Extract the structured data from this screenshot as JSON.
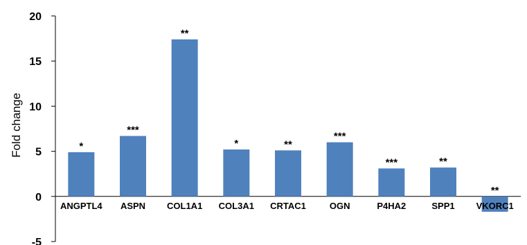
{
  "chart_data": {
    "type": "bar",
    "title": "",
    "xlabel": "",
    "ylabel": "Fold change",
    "ylim": [
      -5,
      20
    ],
    "yticks": [
      "20",
      "15",
      "10",
      "5",
      "0",
      "-5"
    ],
    "grid": false,
    "categories": [
      "ANGPTL4",
      "ASPN",
      "COL1A1",
      "COL3A1",
      "CRTAC1",
      "OGN",
      "P4HA2",
      "SPP1",
      "VKORC1"
    ],
    "values": [
      4.9,
      6.7,
      17.4,
      5.2,
      5.1,
      6.0,
      3.1,
      3.2,
      -1.7
    ],
    "significance": [
      "*",
      "***",
      "**",
      "*",
      "**",
      "***",
      "***",
      "**",
      "**"
    ],
    "colors": {
      "bar": "#4F81BD",
      "axis": "#000000"
    }
  }
}
